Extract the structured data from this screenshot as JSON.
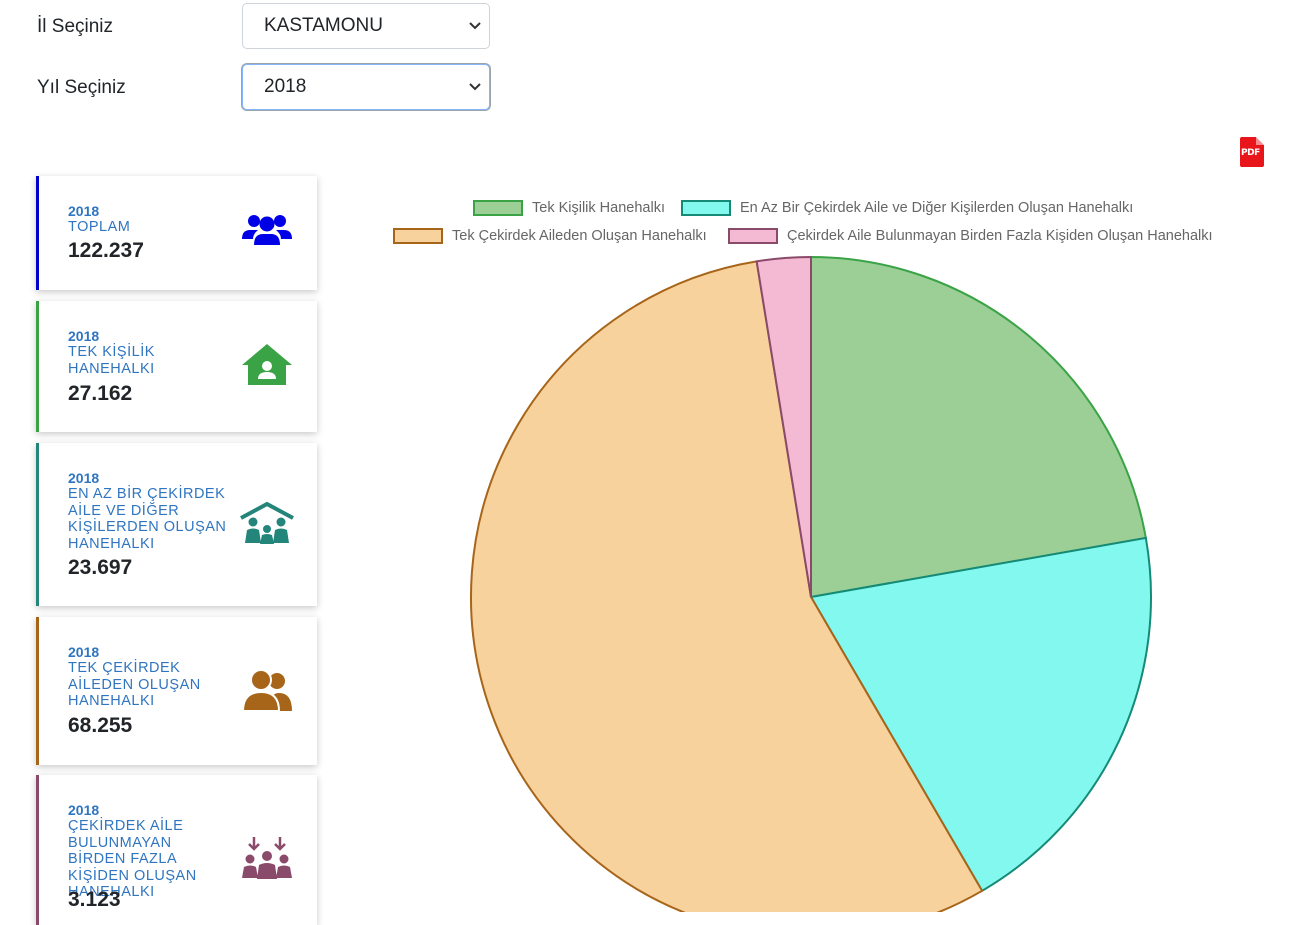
{
  "filters": {
    "province_label": "İl Seçiniz",
    "province_value": "KASTAMONU",
    "year_label": "Yıl Seçiniz",
    "year_value": "2018"
  },
  "pdf_icon_text": "PDF",
  "cards": [
    {
      "year": "2018",
      "title": "TOPLAM",
      "value": "122.237",
      "color": "#0000cc",
      "icon": "users-icon"
    },
    {
      "year": "2018",
      "title": "TEK KİŞİLİK HANEHALKI",
      "value": "27.162",
      "color": "#3aa346",
      "icon": "house-user-icon"
    },
    {
      "year": "2018",
      "title": "EN AZ BİR ÇEKİRDEK AİLE VE DİĞER KİŞİLERDEN OLUŞAN HANEHALKI",
      "value": "23.697",
      "color": "#24857a",
      "icon": "family-roof-icon"
    },
    {
      "year": "2018",
      "title": "TEK ÇEKİRDEK AİLEDEN OLUŞAN HANEHALKI",
      "value": "68.255",
      "color": "#a7651a",
      "icon": "user-friends-icon"
    },
    {
      "year": "2018",
      "title": "ÇEKİRDEK AİLE BULUNMAYAN BİRDEN FAZLA KİŞİDEN OLUŞAN HANEHALKI",
      "value": "3.123",
      "color": "#8a4a6a",
      "icon": "people-arrows-icon"
    }
  ],
  "chart_data": {
    "type": "pie",
    "title": "",
    "legend_position": "top",
    "series": [
      {
        "name": "Tek Kişilik Hanehalkı",
        "value": 27162,
        "fill": "#9bcf96",
        "stroke": "#3aa346"
      },
      {
        "name": "En Az Bir Çekirdek Aile ve Diğer Kişilerden Oluşan Hanehalkı",
        "value": 23697,
        "fill": "#83f8ef",
        "stroke": "#168a77"
      },
      {
        "name": "Tek Çekirdek Aileden Oluşan Hanehalkı",
        "value": 68255,
        "fill": "#f7d29d",
        "stroke": "#a7651a"
      },
      {
        "name": "Çekirdek Aile Bulunmayan Birden Fazla Kişiden Oluşan Hanehalkı",
        "value": 3123,
        "fill": "#f4b9d3",
        "stroke": "#8a4a6a"
      }
    ]
  }
}
